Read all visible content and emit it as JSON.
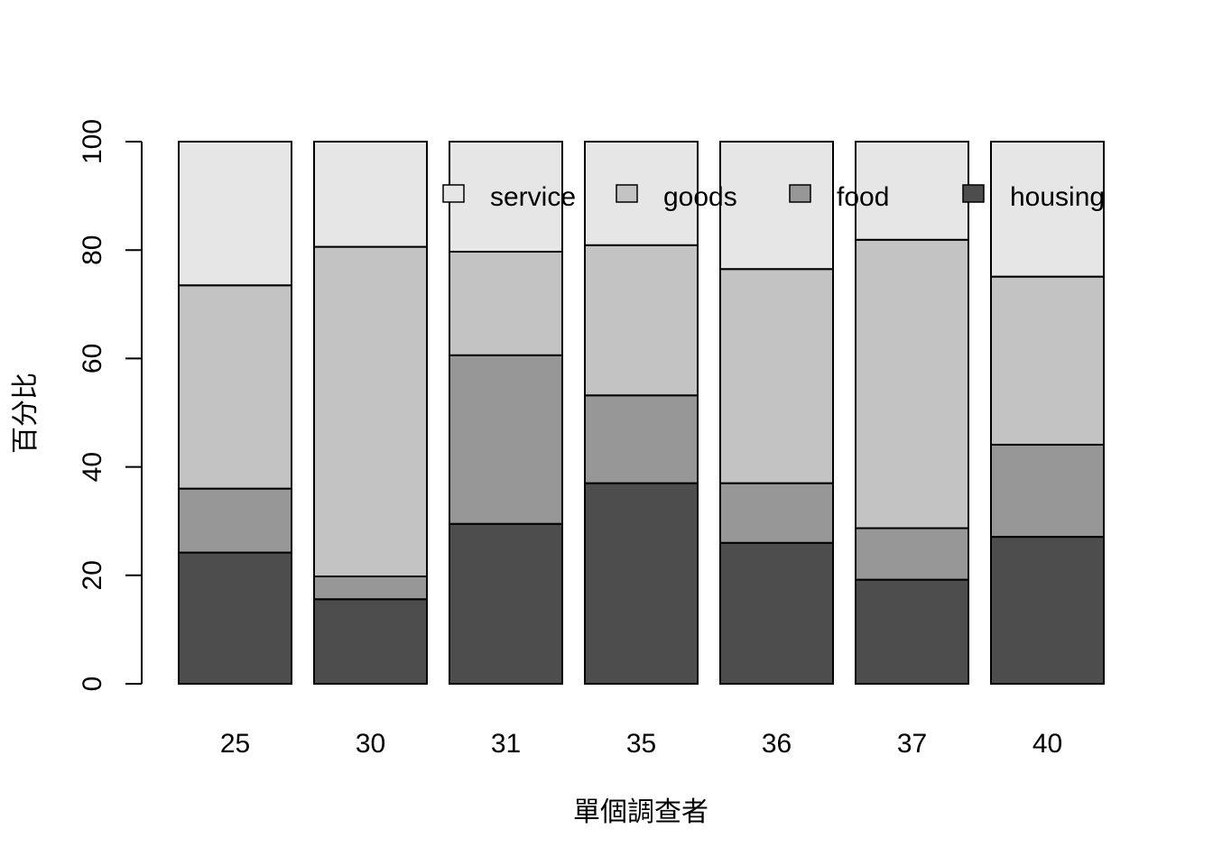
{
  "chart_data": {
    "type": "bar",
    "stacked": true,
    "percent": true,
    "categories": [
      "25",
      "30",
      "31",
      "35",
      "36",
      "37",
      "40"
    ],
    "series": [
      {
        "name": "housing",
        "color": "#4d4d4d",
        "values": [
          24.2,
          15.6,
          29.5,
          37.0,
          26.0,
          19.2,
          27.1
        ]
      },
      {
        "name": "food",
        "color": "#979797",
        "values": [
          11.8,
          4.2,
          31.1,
          16.2,
          11.0,
          9.5,
          17.0
        ]
      },
      {
        "name": "goods",
        "color": "#c3c3c3",
        "values": [
          37.5,
          60.8,
          19.1,
          27.7,
          39.5,
          53.2,
          31.0
        ]
      },
      {
        "name": "service",
        "color": "#e6e6e6",
        "values": [
          26.5,
          19.4,
          20.3,
          19.1,
          23.5,
          18.1,
          24.9
        ]
      }
    ],
    "legend_order": [
      "service",
      "goods",
      "food",
      "housing"
    ],
    "legend_position": "top-right, horizontal",
    "xlabel": "單個調查者",
    "ylabel": "百分比",
    "ylim": [
      0,
      100
    ],
    "yticks": [
      0,
      20,
      40,
      60,
      80,
      100
    ],
    "grid": false
  }
}
